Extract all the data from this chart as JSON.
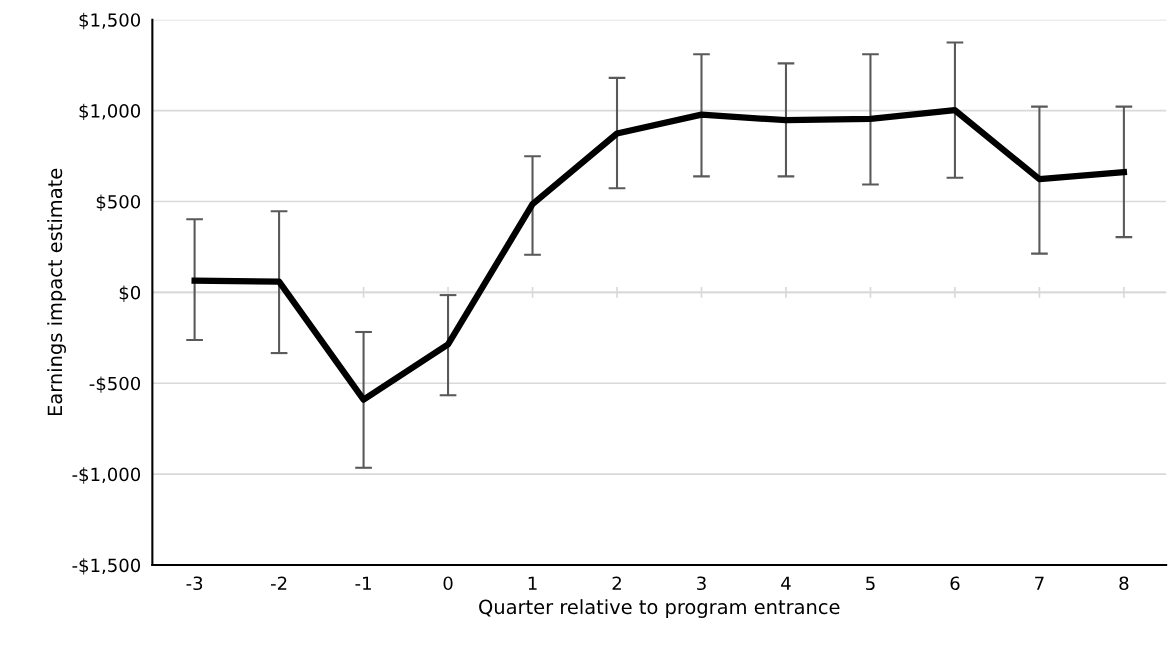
{
  "chart_data": {
    "type": "line",
    "xlabel": "Quarter relative to program entrance",
    "ylabel": "Earnings impact estimate",
    "categories": [
      "-3",
      "-2",
      "-1",
      "0",
      "1",
      "2",
      "3",
      "4",
      "5",
      "6",
      "7",
      "8"
    ],
    "series": [
      {
        "color": "#000000",
        "values": [
          65,
          59,
          -590,
          -286,
          485,
          874,
          978,
          947,
          955,
          1002,
          623,
          662
        ],
        "errors": [
          [
            -262,
            402
          ],
          [
            -334,
            446
          ],
          [
            -965,
            -218
          ],
          [
            -566,
            -15
          ],
          [
            207,
            749
          ],
          [
            573,
            1180
          ],
          [
            638,
            1310
          ],
          [
            638,
            1260
          ],
          [
            593,
            1310
          ],
          [
            631,
            1375
          ],
          [
            213,
            1022
          ],
          [
            304,
            1022
          ]
        ]
      }
    ],
    "ylim": [
      -1500,
      1500
    ],
    "yticks": [
      {
        "value": -1500,
        "label": "-$1,500"
      },
      {
        "value": -1000,
        "label": "-$1,000"
      },
      {
        "value": -500,
        "label": "-$500"
      },
      {
        "value": 0,
        "label": "$0"
      },
      {
        "value": 500,
        "label": "$500"
      },
      {
        "value": 1000,
        "label": "$1,000"
      },
      {
        "value": 1500,
        "label": "$1,500"
      }
    ],
    "grid": "y",
    "marker": "none",
    "line_style": "solid"
  }
}
